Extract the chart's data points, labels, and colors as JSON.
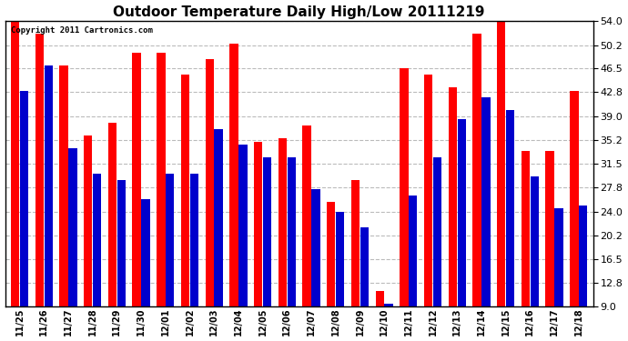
{
  "title": "Outdoor Temperature Daily High/Low 20111219",
  "copyright": "Copyright 2011 Cartronics.com",
  "dates": [
    "11/25",
    "11/26",
    "11/27",
    "11/28",
    "11/29",
    "11/30",
    "12/01",
    "12/02",
    "12/03",
    "12/04",
    "12/05",
    "12/06",
    "12/07",
    "12/08",
    "12/09",
    "12/10",
    "12/11",
    "12/12",
    "12/13",
    "12/14",
    "12/15",
    "12/16",
    "12/17",
    "12/18"
  ],
  "highs": [
    54.0,
    52.0,
    47.0,
    36.0,
    38.0,
    49.0,
    49.0,
    45.5,
    48.0,
    50.5,
    35.0,
    35.5,
    37.5,
    25.5,
    29.0,
    11.5,
    46.5,
    45.5,
    43.5,
    52.0,
    54.0,
    33.5,
    33.5,
    43.0
  ],
  "lows": [
    43.0,
    47.0,
    34.0,
    30.0,
    29.0,
    26.0,
    30.0,
    30.0,
    37.0,
    34.5,
    32.5,
    32.5,
    27.5,
    24.0,
    21.5,
    9.5,
    26.5,
    32.5,
    38.5,
    42.0,
    40.0,
    29.5,
    24.5,
    25.0
  ],
  "high_color": "#ff0000",
  "low_color": "#0000cc",
  "bg_color": "#ffffff",
  "grid_color": "#aaaaaa",
  "yticks": [
    9.0,
    12.8,
    16.5,
    20.2,
    24.0,
    27.8,
    31.5,
    35.2,
    39.0,
    42.8,
    46.5,
    50.2,
    54.0
  ],
  "ymin": 9.0,
  "ymax": 54.0,
  "bar_width": 0.35,
  "figwidth": 6.9,
  "figheight": 3.75,
  "dpi": 100
}
